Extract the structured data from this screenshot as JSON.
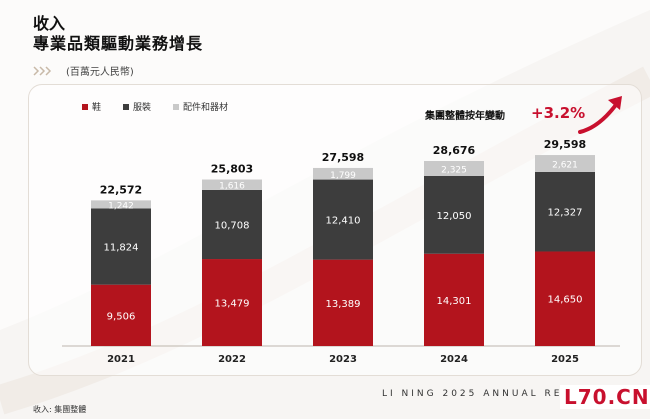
{
  "header": {
    "title": "收入",
    "subtitle": "專業品類驅動業務增長",
    "unit": "(百萬元人民幣)"
  },
  "growth": {
    "label": "集團整體按年變動",
    "value": "+3.2%"
  },
  "footer": {
    "brand_line": "LI NING 2025 ANNUAL RESULTS",
    "source": "收入: 集團整體",
    "watermark": "L70.CN"
  },
  "colors": {
    "shoes": "#b3141d",
    "apparel": "#3d3d3d",
    "accessories": "#c9c9c9",
    "accent": "#c8102e"
  },
  "chart_data": {
    "type": "bar",
    "stacked": true,
    "categories": [
      "2021",
      "2022",
      "2023",
      "2024",
      "2025"
    ],
    "series": [
      {
        "name": "鞋",
        "values": [
          9506,
          13479,
          13389,
          14301,
          14650
        ]
      },
      {
        "name": "服裝",
        "values": [
          11824,
          10708,
          12410,
          12050,
          12327
        ]
      },
      {
        "name": "配件和器材",
        "values": [
          1242,
          1616,
          1799,
          2325,
          2621
        ]
      }
    ],
    "totals": [
      22572,
      25803,
      27598,
      28676,
      29598
    ],
    "ylim": [
      0,
      31000
    ],
    "legend_position": "top-left",
    "grid": false
  }
}
